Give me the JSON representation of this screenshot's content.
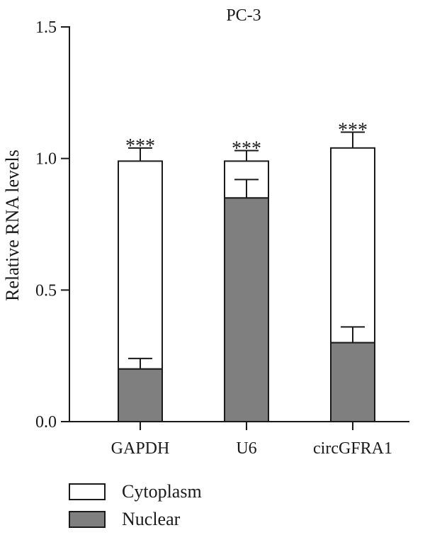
{
  "chart_data": {
    "type": "bar",
    "stacked": true,
    "title": "PC-3",
    "xlabel": "",
    "ylabel": "Relative RNA levels",
    "ylim": [
      0,
      1.5
    ],
    "yticks": [
      "0.0",
      "0.5",
      "1.0",
      "1.5"
    ],
    "categories": [
      "GAPDH",
      "U6",
      "circGFRA1"
    ],
    "series": [
      {
        "name": "Nuclear",
        "color": "#7f7f7f",
        "values": [
          0.2,
          0.85,
          0.3
        ],
        "error": [
          0.04,
          0.07,
          0.06
        ]
      },
      {
        "name": "Cytoplasm",
        "color": "#ffffff",
        "totals": [
          0.99,
          0.99,
          1.04
        ],
        "error": [
          0.05,
          0.04,
          0.06
        ]
      }
    ],
    "annotations": [
      "***",
      "***",
      "***"
    ],
    "legend_position": "bottom-left"
  }
}
